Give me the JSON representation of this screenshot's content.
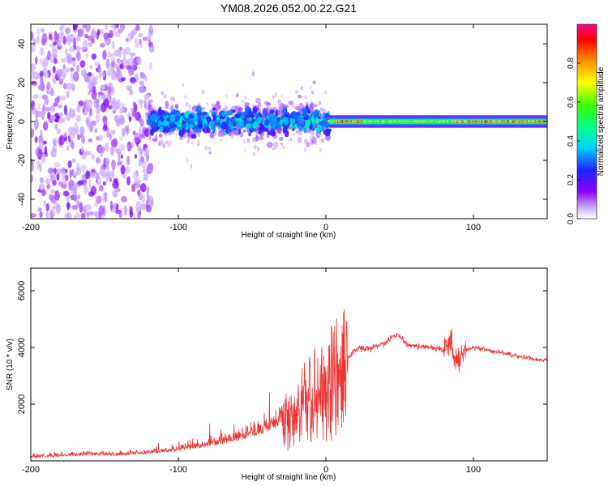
{
  "title": "YM08.2026.052.00.22.G21",
  "chart_data": [
    {
      "type": "heatmap",
      "name": "spectrogram",
      "xlabel": "Height of straight line (km)",
      "ylabel": "Frequency (Hz)",
      "xlim": [
        -200,
        150
      ],
      "ylim": [
        -50,
        50
      ],
      "xticks": [
        "-200",
        "-100",
        "0",
        "100"
      ],
      "yticks": [
        "-40",
        "-20",
        "0",
        "20",
        "40"
      ],
      "colorbar": {
        "label": "Normalized spectral amplitude",
        "range": [
          0,
          1
        ],
        "ticks": [
          "0.0",
          "0.2",
          "0.4",
          "0.6",
          "0.8"
        ]
      },
      "description_regions": [
        {
          "x_range": [
            -200,
            -120
          ],
          "freq_spread": [
            -50,
            50
          ],
          "amplitude": [
            0.0,
            0.2
          ]
        },
        {
          "x_range": [
            -120,
            0
          ],
          "freq_spread": [
            -15,
            15
          ],
          "amplitude": [
            0.15,
            0.45
          ]
        },
        {
          "x_range": [
            0,
            150
          ],
          "freq_spread": [
            -2,
            2
          ],
          "amplitude": [
            0.45,
            0.95
          ]
        }
      ]
    },
    {
      "type": "line",
      "name": "snr",
      "xlabel": "Height of straight line (km)",
      "ylabel": "SNR (10 * v/v)",
      "xlim": [
        -200,
        150
      ],
      "ylim": [
        0,
        6800
      ],
      "xticks": [
        "-200",
        "-100",
        "0",
        "100"
      ],
      "yticks": [
        "2000",
        "4000",
        "6000"
      ],
      "color": "#ee3333",
      "series": [
        {
          "name": "SNR",
          "x": [
            -200,
            -180,
            -160,
            -140,
            -120,
            -100,
            -80,
            -60,
            -40,
            -30,
            -20,
            -10,
            0,
            5,
            10,
            15,
            20,
            30,
            40,
            48,
            55,
            70,
            80,
            85,
            88,
            92,
            100,
            120,
            140,
            150
          ],
          "y": [
            100,
            150,
            200,
            180,
            250,
            350,
            500,
            700,
            1000,
            1300,
            1800,
            2400,
            2800,
            3000,
            3200,
            3600,
            3900,
            4000,
            4150,
            4500,
            4100,
            4000,
            3900,
            4300,
            3500,
            3800,
            4000,
            3800,
            3600,
            3550
          ]
        }
      ]
    }
  ]
}
